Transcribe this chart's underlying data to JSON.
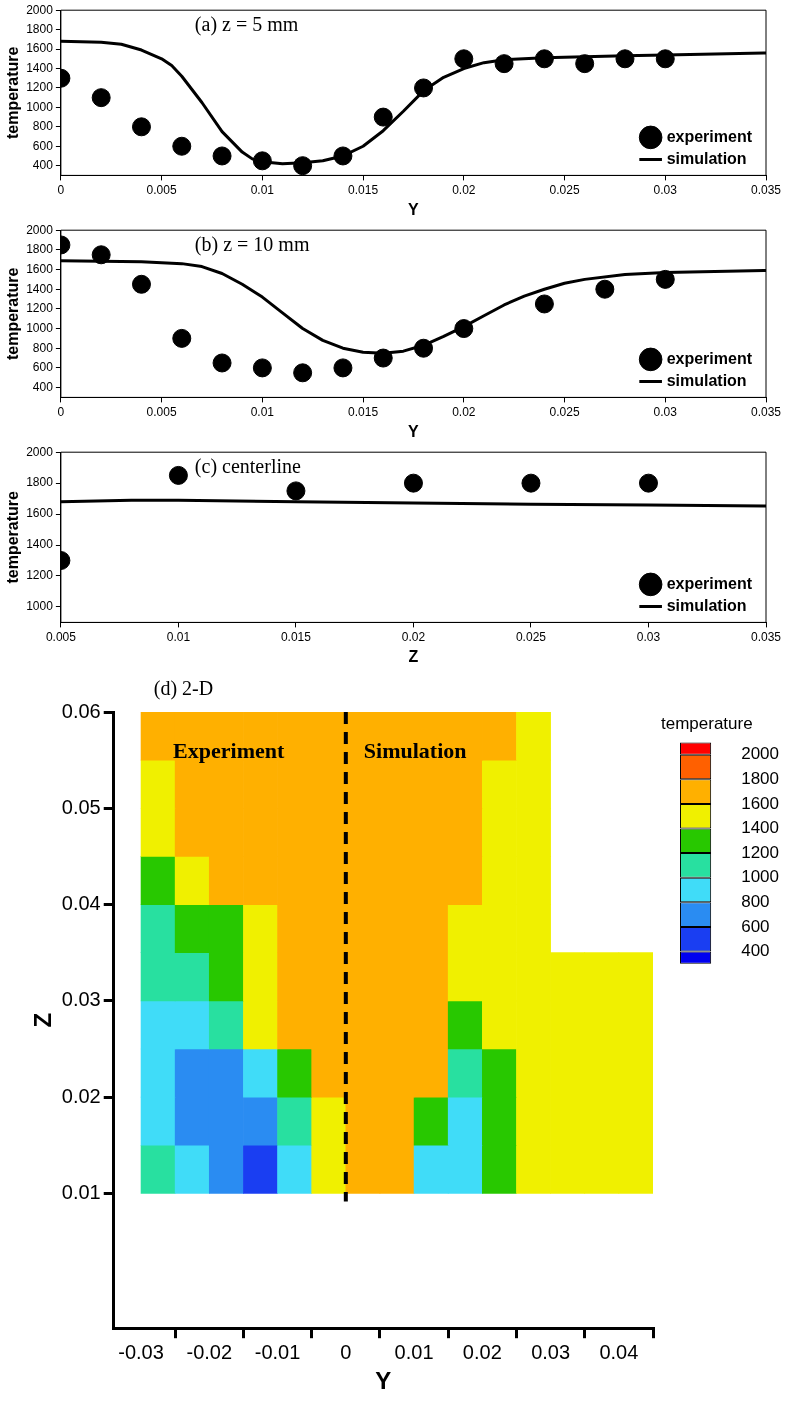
{
  "chart_data": [
    {
      "type": "scatter",
      "title": "(a) z = 5 mm",
      "xlabel": "Y",
      "ylabel": "temperature",
      "xlim": [
        0,
        0.035
      ],
      "ylim": [
        300,
        2000
      ],
      "xticks": [
        0,
        0.005,
        0.01,
        0.015,
        0.02,
        0.025,
        0.03,
        0.035
      ],
      "yticks": [
        400,
        600,
        800,
        1000,
        1200,
        1400,
        1600,
        1800,
        2000
      ],
      "legend": "bottom right",
      "series": [
        {
          "name": "experiment",
          "color": "#000000",
          "marker": "circle",
          "x": [
            0,
            0.002,
            0.004,
            0.006,
            0.008,
            0.01,
            0.012,
            0.014,
            0.016,
            0.018,
            0.02,
            0.022,
            0.024,
            0.026,
            0.028,
            0.03
          ],
          "values": [
            1300,
            1100,
            800,
            600,
            500,
            450,
            400,
            500,
            900,
            1200,
            1500,
            1450,
            1500,
            1450,
            1500,
            1500
          ]
        },
        {
          "name": "simulation",
          "type": "line",
          "color": "#000000",
          "marker": "none",
          "line_style": "solid",
          "x": [
            0,
            0.002,
            0.003,
            0.004,
            0.005,
            0.0055,
            0.006,
            0.007,
            0.008,
            0.009,
            0.0095,
            0.01,
            0.011,
            0.012,
            0.013,
            0.014,
            0.015,
            0.016,
            0.017,
            0.018,
            0.019,
            0.02,
            0.021,
            0.022,
            0.024,
            0.026,
            0.028,
            0.03,
            0.035
          ],
          "values": [
            1680,
            1670,
            1650,
            1590,
            1500,
            1430,
            1320,
            1050,
            750,
            540,
            470,
            440,
            420,
            430,
            450,
            500,
            600,
            760,
            960,
            1170,
            1310,
            1400,
            1460,
            1490,
            1510,
            1520,
            1530,
            1540,
            1560
          ]
        }
      ]
    },
    {
      "type": "scatter",
      "title": "(b) z = 10 mm",
      "xlabel": "Y",
      "ylabel": "temperature",
      "xlim": [
        0,
        0.035
      ],
      "ylim": [
        300,
        2000
      ],
      "xticks": [
        0,
        0.005,
        0.01,
        0.015,
        0.02,
        0.025,
        0.03,
        0.035
      ],
      "yticks": [
        400,
        600,
        800,
        1000,
        1200,
        1400,
        1600,
        1800,
        2000
      ],
      "legend": "bottom right",
      "series": [
        {
          "name": "experiment",
          "color": "#000000",
          "marker": "circle",
          "x": [
            0,
            0.002,
            0.004,
            0.006,
            0.008,
            0.01,
            0.012,
            0.014,
            0.016,
            0.018,
            0.02,
            0.024,
            0.027,
            0.03
          ],
          "values": [
            1850,
            1750,
            1450,
            900,
            650,
            600,
            550,
            600,
            700,
            800,
            1000,
            1250,
            1400,
            1500
          ]
        },
        {
          "name": "simulation",
          "type": "line",
          "color": "#000000",
          "marker": "none",
          "line_style": "solid",
          "x": [
            0,
            0.004,
            0.006,
            0.007,
            0.008,
            0.009,
            0.01,
            0.011,
            0.012,
            0.013,
            0.014,
            0.015,
            0.016,
            0.017,
            0.018,
            0.019,
            0.02,
            0.021,
            0.022,
            0.023,
            0.024,
            0.025,
            0.026,
            0.028,
            0.03,
            0.035
          ],
          "values": [
            1690,
            1680,
            1660,
            1630,
            1560,
            1450,
            1320,
            1160,
            1000,
            880,
            800,
            760,
            750,
            770,
            830,
            920,
            1020,
            1130,
            1240,
            1330,
            1400,
            1460,
            1500,
            1550,
            1570,
            1590
          ]
        }
      ]
    },
    {
      "type": "scatter",
      "title": "(c) centerline",
      "xlabel": "Z",
      "ylabel": "temperature",
      "xlim": [
        0.005,
        0.035
      ],
      "ylim": [
        900,
        2000
      ],
      "xticks": [
        0.005,
        0.01,
        0.015,
        0.02,
        0.025,
        0.03,
        0.035
      ],
      "yticks": [
        1000,
        1200,
        1400,
        1600,
        1800,
        2000
      ],
      "legend": "bottom right",
      "series": [
        {
          "name": "experiment",
          "color": "#000000",
          "marker": "circle",
          "x": [
            0.005,
            0.01,
            0.015,
            0.02,
            0.025,
            0.03
          ],
          "values": [
            1300,
            1850,
            1750,
            1800,
            1800,
            1800
          ]
        },
        {
          "name": "simulation",
          "type": "line",
          "color": "#000000",
          "marker": "none",
          "line_style": "solid",
          "x": [
            0.005,
            0.008,
            0.01,
            0.015,
            0.02,
            0.025,
            0.03,
            0.035
          ],
          "values": [
            1680,
            1690,
            1690,
            1680,
            1672,
            1664,
            1658,
            1652
          ]
        }
      ]
    },
    {
      "type": "heatmap",
      "title": "(d) 2-D",
      "xlabel": "Y",
      "ylabel": "Z",
      "clabel": "temperature",
      "xlim": [
        -0.034,
        0.045
      ],
      "ylim": [
        -0.004,
        0.06
      ],
      "xticks": [
        -0.03,
        -0.02,
        -0.01,
        0,
        0.01,
        0.02,
        0.03,
        0.04
      ],
      "yticks": [
        0.01,
        0.02,
        0.03,
        0.04,
        0.05,
        0.06
      ],
      "clim": [
        300,
        2100
      ],
      "cticks": [
        400,
        600,
        800,
        1000,
        1200,
        1400,
        1600,
        1800,
        2000
      ],
      "x": [
        -0.0275,
        -0.0225,
        -0.0175,
        -0.0125,
        -0.0075,
        -0.0025,
        0.0025,
        0.0075,
        0.0125,
        0.0175,
        0.0225,
        0.0275,
        0.0325,
        0.0375,
        0.0425
      ],
      "y": [
        0.0575,
        0.0525,
        0.0475,
        0.0425,
        0.0375,
        0.0325,
        0.0275,
        0.0225,
        0.0175,
        0.0125
      ],
      "cells": [
        [
          1700,
          1700,
          1700,
          1700,
          1700,
          1700,
          1700,
          1700,
          1700,
          1700,
          1700,
          1500,
          null,
          null,
          null
        ],
        [
          1500,
          1700,
          1700,
          1700,
          1700,
          1700,
          1700,
          1700,
          1700,
          1700,
          1500,
          1500,
          null,
          null,
          null
        ],
        [
          1500,
          1700,
          1700,
          1700,
          1700,
          1700,
          1700,
          1700,
          1700,
          1700,
          1500,
          1500,
          null,
          null,
          null
        ],
        [
          1300,
          1500,
          1700,
          1700,
          1700,
          1700,
          1700,
          1700,
          1700,
          1700,
          1500,
          1500,
          null,
          null,
          null
        ],
        [
          1100,
          1300,
          1300,
          1500,
          1700,
          1700,
          1700,
          1700,
          1700,
          1500,
          1500,
          1500,
          null,
          null,
          null
        ],
        [
          1100,
          1100,
          1300,
          1500,
          1700,
          1700,
          1700,
          1700,
          1700,
          1500,
          1500,
          1500,
          1500,
          1500,
          1500
        ],
        [
          900,
          900,
          1100,
          1500,
          1700,
          1700,
          1700,
          1700,
          1700,
          1300,
          1500,
          1500,
          1500,
          1500,
          1500
        ],
        [
          900,
          700,
          700,
          900,
          1300,
          1700,
          1700,
          1700,
          1700,
          1100,
          1300,
          1500,
          1500,
          1500,
          1500
        ],
        [
          900,
          700,
          700,
          700,
          1100,
          1500,
          1700,
          1700,
          1300,
          900,
          1300,
          1500,
          1500,
          1500,
          1500
        ],
        [
          1100,
          900,
          700,
          500,
          900,
          1500,
          1700,
          1700,
          900,
          900,
          1300,
          1500,
          1500,
          1500,
          1500
        ]
      ],
      "ref_lines": [
        {
          "axis": "x",
          "value": 0,
          "color": "#000000",
          "line_style": "dashed"
        }
      ],
      "annotations": [
        "Experiment",
        "Simulation"
      ]
    }
  ]
}
